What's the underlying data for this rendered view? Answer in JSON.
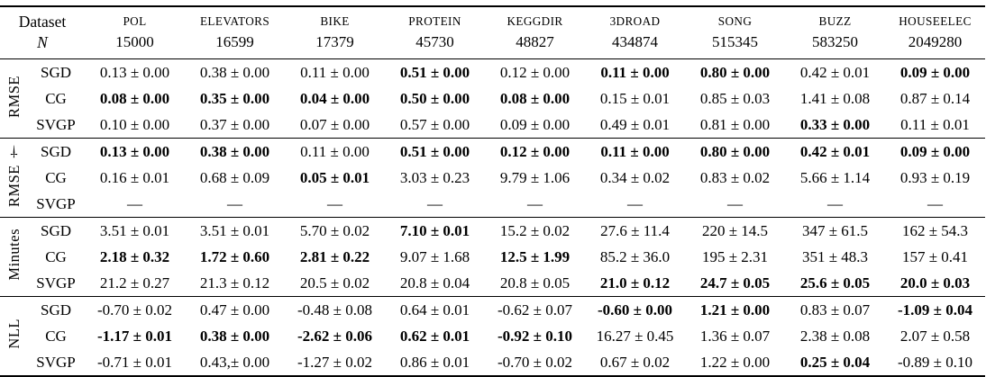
{
  "colors": {
    "background": "#ffffff",
    "text": "#000000",
    "rule": "#000000"
  },
  "table": {
    "header": {
      "dataset_label": "Dataset",
      "n_label": "N",
      "columns": [
        {
          "name": "POL",
          "n": "15000"
        },
        {
          "name": "ELEVATORS",
          "n": "16599"
        },
        {
          "name": "BIKE",
          "n": "17379"
        },
        {
          "name": "PROTEIN",
          "n": "45730"
        },
        {
          "name": "KEGGDIR",
          "n": "48827"
        },
        {
          "name": "3DROAD",
          "n": "434874"
        },
        {
          "name": "SONG",
          "n": "515345"
        },
        {
          "name": "BUZZ",
          "n": "583250"
        },
        {
          "name": "HOUSEELEC",
          "n": "2049280"
        }
      ]
    },
    "groups": [
      {
        "label": "RMSE",
        "rows": [
          {
            "method": "SGD",
            "cells": [
              {
                "t": "0.13 ± 0.00",
                "b": 0
              },
              {
                "t": "0.38 ± 0.00",
                "b": 0
              },
              {
                "t": "0.11 ± 0.00",
                "b": 0
              },
              {
                "t": "0.51 ± 0.00",
                "b": 1
              },
              {
                "t": "0.12 ± 0.00",
                "b": 0
              },
              {
                "t": "0.11 ± 0.00",
                "b": 1
              },
              {
                "t": "0.80 ± 0.00",
                "b": 1
              },
              {
                "t": "0.42 ± 0.01",
                "b": 0
              },
              {
                "t": "0.09 ± 0.00",
                "b": 1
              }
            ]
          },
          {
            "method": "CG",
            "cells": [
              {
                "t": "0.08 ± 0.00",
                "b": 1
              },
              {
                "t": "0.35 ± 0.00",
                "b": 1
              },
              {
                "t": "0.04 ± 0.00",
                "b": 1
              },
              {
                "t": "0.50 ± 0.00",
                "b": 1
              },
              {
                "t": "0.08 ± 0.00",
                "b": 1
              },
              {
                "t": "0.15 ± 0.01",
                "b": 0
              },
              {
                "t": "0.85 ± 0.03",
                "b": 0
              },
              {
                "t": "1.41 ± 0.08",
                "b": 0
              },
              {
                "t": "0.87 ± 0.14",
                "b": 0
              }
            ]
          },
          {
            "method": "SVGP",
            "cells": [
              {
                "t": "0.10 ± 0.00",
                "b": 0
              },
              {
                "t": "0.37 ± 0.00",
                "b": 0
              },
              {
                "t": "0.07 ± 0.00",
                "b": 0
              },
              {
                "t": "0.57 ± 0.00",
                "b": 0
              },
              {
                "t": "0.09 ± 0.00",
                "b": 0
              },
              {
                "t": "0.49 ± 0.01",
                "b": 0
              },
              {
                "t": "0.81 ± 0.00",
                "b": 0
              },
              {
                "t": "0.33 ± 0.00",
                "b": 1
              },
              {
                "t": "0.11 ± 0.01",
                "b": 0
              }
            ]
          }
        ]
      },
      {
        "label": "RMSE †",
        "rows": [
          {
            "method": "SGD",
            "cells": [
              {
                "t": "0.13 ± 0.00",
                "b": 1
              },
              {
                "t": "0.38 ± 0.00",
                "b": 1
              },
              {
                "t": "0.11 ± 0.00",
                "b": 0
              },
              {
                "t": "0.51 ± 0.00",
                "b": 1
              },
              {
                "t": "0.12 ± 0.00",
                "b": 1
              },
              {
                "t": "0.11 ± 0.00",
                "b": 1
              },
              {
                "t": "0.80 ± 0.00",
                "b": 1
              },
              {
                "t": "0.42 ± 0.01",
                "b": 1
              },
              {
                "t": "0.09 ± 0.00",
                "b": 1
              }
            ]
          },
          {
            "method": "CG",
            "cells": [
              {
                "t": "0.16 ± 0.01",
                "b": 0
              },
              {
                "t": "0.68 ± 0.09",
                "b": 0
              },
              {
                "t": "0.05 ± 0.01",
                "b": 1
              },
              {
                "t": "3.03 ± 0.23",
                "b": 0
              },
              {
                "t": "9.79 ± 1.06",
                "b": 0
              },
              {
                "t": "0.34 ± 0.02",
                "b": 0
              },
              {
                "t": "0.83 ± 0.02",
                "b": 0
              },
              {
                "t": "5.66 ± 1.14",
                "b": 0
              },
              {
                "t": "0.93 ± 0.19",
                "b": 0
              }
            ]
          },
          {
            "method": "SVGP",
            "cells": [
              {
                "t": "—",
                "b": 0
              },
              {
                "t": "—",
                "b": 0
              },
              {
                "t": "—",
                "b": 0
              },
              {
                "t": "—",
                "b": 0
              },
              {
                "t": "—",
                "b": 0
              },
              {
                "t": "—",
                "b": 0
              },
              {
                "t": "—",
                "b": 0
              },
              {
                "t": "—",
                "b": 0
              },
              {
                "t": "—",
                "b": 0
              }
            ]
          }
        ]
      },
      {
        "label": "Minutes",
        "rows": [
          {
            "method": "SGD",
            "cells": [
              {
                "t": "3.51 ± 0.01",
                "b": 0
              },
              {
                "t": "3.51 ± 0.01",
                "b": 0
              },
              {
                "t": "5.70 ± 0.02",
                "b": 0
              },
              {
                "t": "7.10 ± 0.01",
                "b": 1
              },
              {
                "t": "15.2 ± 0.02",
                "b": 0
              },
              {
                "t": "27.6 ± 11.4",
                "b": 0
              },
              {
                "t": "220 ± 14.5",
                "b": 0
              },
              {
                "t": "347 ± 61.5",
                "b": 0
              },
              {
                "t": "162 ± 54.3",
                "b": 0
              }
            ]
          },
          {
            "method": "CG",
            "cells": [
              {
                "t": "2.18 ± 0.32",
                "b": 1
              },
              {
                "t": "1.72 ± 0.60",
                "b": 1
              },
              {
                "t": "2.81 ± 0.22",
                "b": 1
              },
              {
                "t": "9.07 ± 1.68",
                "b": 0
              },
              {
                "t": "12.5 ± 1.99",
                "b": 1
              },
              {
                "t": "85.2 ± 36.0",
                "b": 0
              },
              {
                "t": "195 ± 2.31",
                "b": 0
              },
              {
                "t": "351 ± 48.3",
                "b": 0
              },
              {
                "t": "157 ± 0.41",
                "b": 0
              }
            ]
          },
          {
            "method": "SVGP",
            "cells": [
              {
                "t": "21.2 ± 0.27",
                "b": 0
              },
              {
                "t": "21.3 ± 0.12",
                "b": 0
              },
              {
                "t": "20.5 ± 0.02",
                "b": 0
              },
              {
                "t": "20.8 ± 0.04",
                "b": 0
              },
              {
                "t": "20.8 ± 0.05",
                "b": 0
              },
              {
                "t": "21.0 ± 0.12",
                "b": 1
              },
              {
                "t": "24.7 ± 0.05",
                "b": 1
              },
              {
                "t": "25.6 ± 0.05",
                "b": 1
              },
              {
                "t": "20.0 ± 0.03",
                "b": 1
              }
            ]
          }
        ]
      },
      {
        "label": "NLL",
        "rows": [
          {
            "method": "SGD",
            "cells": [
              {
                "t": "-0.70 ± 0.02",
                "b": 0
              },
              {
                "t": "0.47 ± 0.00",
                "b": 0
              },
              {
                "t": "-0.48 ± 0.08",
                "b": 0
              },
              {
                "t": "0.64 ± 0.01",
                "b": 0
              },
              {
                "t": "-0.62 ± 0.07",
                "b": 0
              },
              {
                "t": "-0.60 ± 0.00",
                "b": 1
              },
              {
                "t": "1.21 ± 0.00",
                "b": 1
              },
              {
                "t": "0.83 ± 0.07",
                "b": 0
              },
              {
                "t": "-1.09 ± 0.04",
                "b": 1
              }
            ]
          },
          {
            "method": "CG",
            "cells": [
              {
                "t": "-1.17 ± 0.01",
                "b": 1
              },
              {
                "t": "0.38 ± 0.00",
                "b": 1
              },
              {
                "t": "-2.62 ± 0.06",
                "b": 1
              },
              {
                "t": "0.62 ± 0.01",
                "b": 1
              },
              {
                "t": "-0.92 ± 0.10",
                "b": 1
              },
              {
                "t": "16.27 ± 0.45",
                "b": 0
              },
              {
                "t": "1.36 ± 0.07",
                "b": 0
              },
              {
                "t": "2.38 ± 0.08",
                "b": 0
              },
              {
                "t": "2.07 ± 0.58",
                "b": 0
              }
            ]
          },
          {
            "method": "SVGP",
            "cells": [
              {
                "t": "-0.71 ± 0.01",
                "b": 0
              },
              {
                "t": "0.43,± 0.00",
                "b": 0
              },
              {
                "t": "-1.27 ± 0.02",
                "b": 0
              },
              {
                "t": "0.86 ± 0.01",
                "b": 0
              },
              {
                "t": "-0.70 ± 0.02",
                "b": 0
              },
              {
                "t": "0.67 ± 0.02",
                "b": 0
              },
              {
                "t": "1.22 ± 0.00",
                "b": 0
              },
              {
                "t": "0.25 ± 0.04",
                "b": 1
              },
              {
                "t": "-0.89 ± 0.10",
                "b": 0
              }
            ]
          }
        ]
      }
    ]
  }
}
